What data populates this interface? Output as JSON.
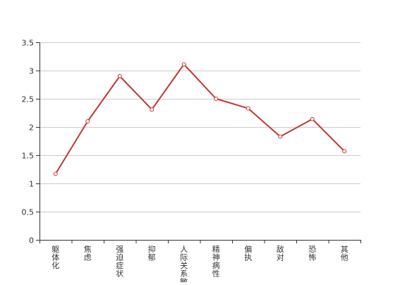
{
  "chart_data": {
    "type": "line",
    "title": "",
    "xlabel": "",
    "ylabel": "",
    "categories": [
      "躯体化",
      "焦虑",
      "强迫症状",
      "抑郁",
      "人际关系敏感",
      "精神病性",
      "偏执",
      "敌对",
      "恐怖",
      "其他"
    ],
    "series": [
      {
        "name": "",
        "values": [
          1.17,
          2.1,
          2.9,
          2.31,
          3.11,
          2.5,
          2.33,
          1.83,
          2.14,
          1.57
        ],
        "color": "#c23531"
      }
    ],
    "ylim": [
      0,
      3.5
    ],
    "yticks": [
      0,
      0.5,
      1,
      1.5,
      2,
      2.5,
      3,
      3.5
    ],
    "ytick_labels": [
      "0",
      "0.5",
      "1",
      "1.5",
      "2",
      "2.5",
      "3",
      "3.5"
    ],
    "grid": true,
    "legend": "none",
    "colors": {
      "line": "#c23531",
      "grid": "#cccccc",
      "axis": "#333333",
      "text": "#333333",
      "marker_fill": "#ffffff"
    }
  }
}
